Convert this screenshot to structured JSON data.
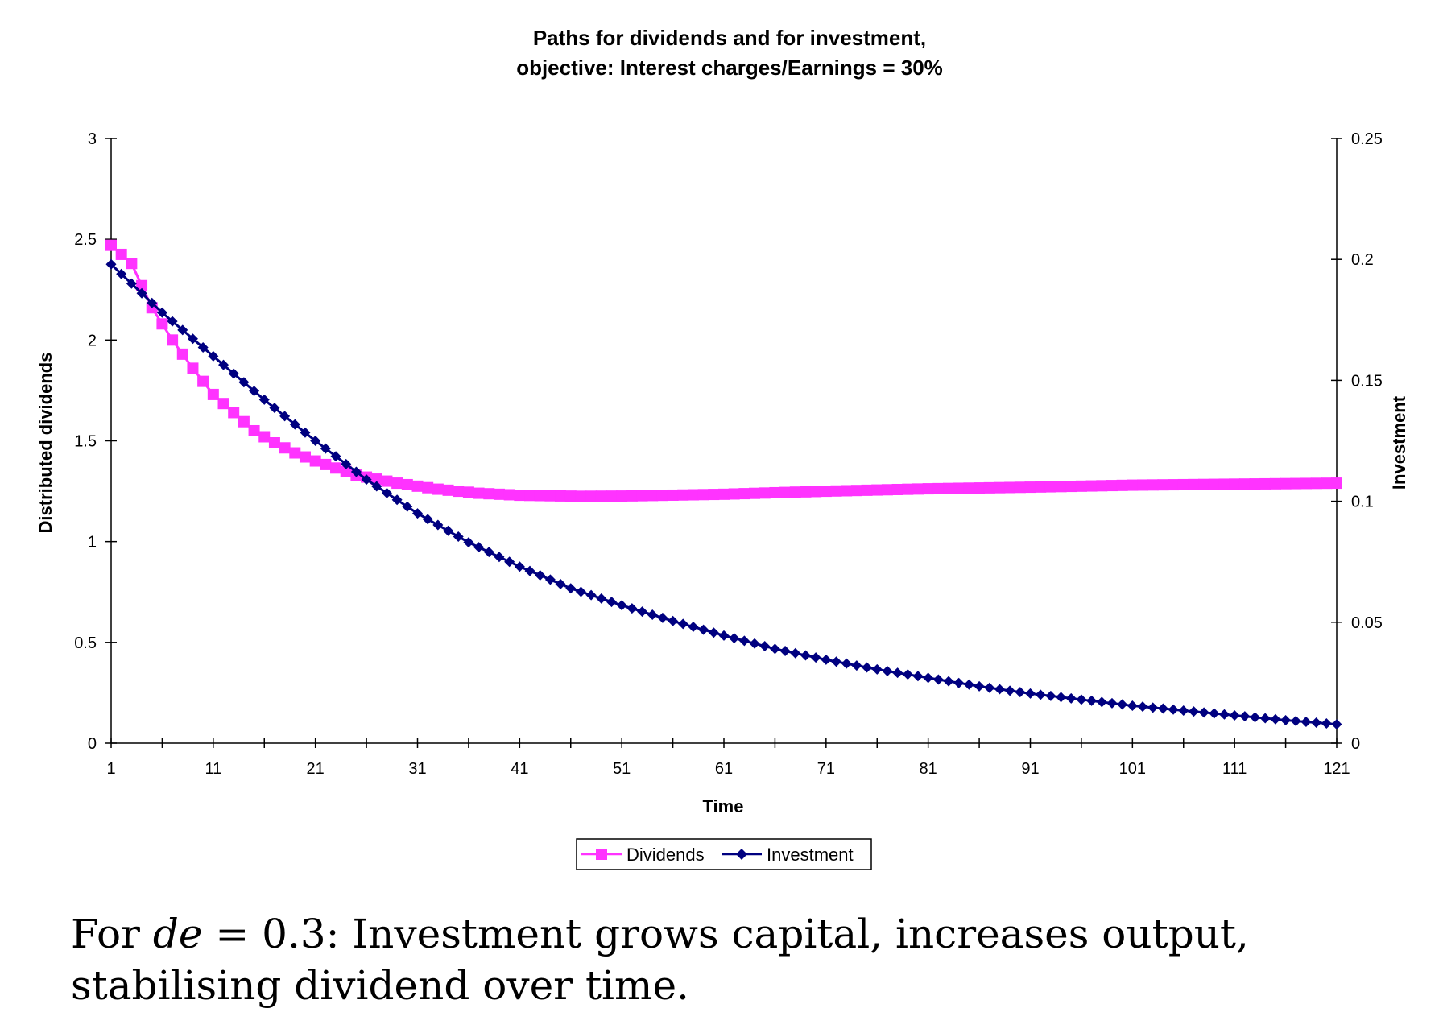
{
  "chart_data": {
    "type": "line",
    "title_line1": "Paths for dividends and for investment,",
    "title_line2": "objective: Interest charges/Earnings = 30%",
    "xlabel": "Time",
    "ylabel_left": "Distributed dividends",
    "ylabel_right": "Investment",
    "xlim": [
      1,
      121
    ],
    "ylim_left": [
      0,
      3
    ],
    "ylim_right": [
      0,
      0.25
    ],
    "x_ticks": [
      "1",
      "11",
      "21",
      "31",
      "41",
      "51",
      "61",
      "71",
      "81",
      "91",
      "101",
      "111",
      "121"
    ],
    "y_left_ticks": [
      "0",
      "0.5",
      "1",
      "1.5",
      "2",
      "2.5",
      "3"
    ],
    "y_right_ticks": [
      "0",
      "0.05",
      "0.1",
      "0.15",
      "0.2",
      "0.25"
    ],
    "grid": false,
    "legend_position": "bottom",
    "series": [
      {
        "name": "Dividends",
        "axis": "left",
        "color": "#ff33ff",
        "marker": "square",
        "x": [
          1,
          3,
          5,
          7,
          9,
          11,
          13,
          15,
          17,
          19,
          21,
          25,
          29,
          33,
          37,
          41,
          47,
          51,
          61,
          71,
          81,
          91,
          101,
          111,
          121
        ],
        "values": [
          2.47,
          2.38,
          2.16,
          2.0,
          1.86,
          1.73,
          1.64,
          1.55,
          1.49,
          1.44,
          1.4,
          1.33,
          1.29,
          1.26,
          1.24,
          1.23,
          1.225,
          1.226,
          1.235,
          1.25,
          1.262,
          1.27,
          1.28,
          1.285,
          1.29
        ]
      },
      {
        "name": "Investment",
        "axis": "right",
        "color": "#000080",
        "marker": "diamond",
        "x": [
          1,
          6,
          11,
          16,
          21,
          26,
          31,
          36,
          41,
          46,
          51,
          56,
          61,
          66,
          71,
          76,
          81,
          86,
          91,
          96,
          101,
          106,
          111,
          116,
          121
        ],
        "values": [
          0.198,
          0.178,
          0.16,
          0.142,
          0.125,
          0.109,
          0.095,
          0.083,
          0.073,
          0.064,
          0.057,
          0.0505,
          0.0445,
          0.039,
          0.0345,
          0.0305,
          0.027,
          0.0235,
          0.0205,
          0.018,
          0.0155,
          0.0135,
          0.0115,
          0.0095,
          0.0078
        ]
      }
    ]
  },
  "caption": {
    "prefix": "For ",
    "math": "de",
    "rest_line1": " = 0.3: Investment grows capital, increases output,",
    "line2": "stabilising dividend over time."
  }
}
